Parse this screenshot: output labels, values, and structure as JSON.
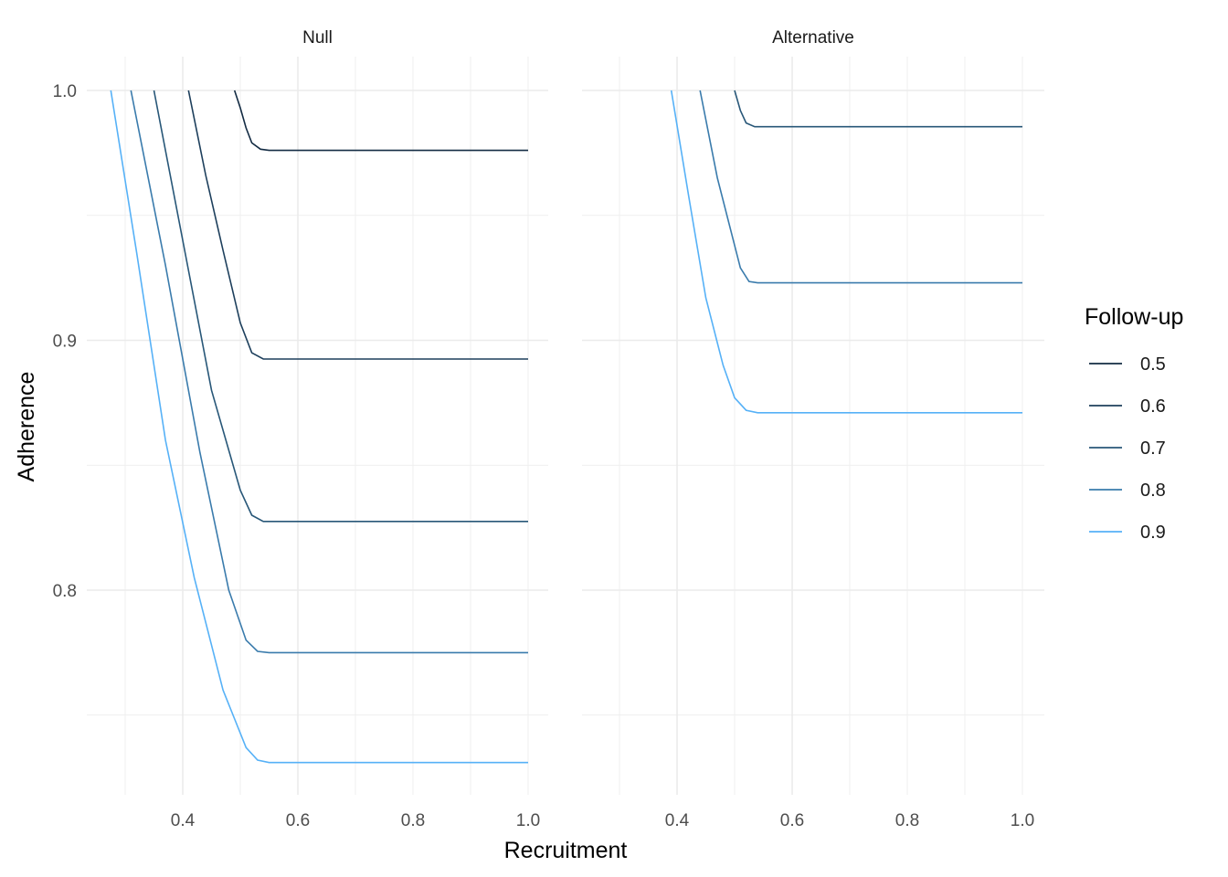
{
  "chart_data": [
    {
      "type": "line",
      "title": "Null",
      "xlabel": "Recruitment",
      "ylabel": "Adherence",
      "xlim": [
        0.25,
        1.03
      ],
      "ylim": [
        0.72,
        1.01
      ],
      "x_ticks": [
        "0.4",
        "0.6",
        "0.8",
        "1.0"
      ],
      "y_ticks": [
        "0.8",
        "0.9",
        "1.0"
      ],
      "grid": true,
      "series": [
        {
          "name": "0.5",
          "color": "#132b43",
          "points": [
            [
              0.49,
              1.0
            ],
            [
              0.5,
              0.993
            ],
            [
              0.51,
              0.985
            ],
            [
              0.52,
              0.979
            ],
            [
              0.535,
              0.9765
            ],
            [
              0.55,
              0.976
            ],
            [
              1.0,
              0.976
            ]
          ]
        },
        {
          "name": "0.6",
          "color": "#1d3f5c",
          "points": [
            [
              0.41,
              1.0
            ],
            [
              0.44,
              0.966
            ],
            [
              0.47,
              0.936
            ],
            [
              0.5,
              0.907
            ],
            [
              0.52,
              0.895
            ],
            [
              0.54,
              0.8925
            ],
            [
              0.56,
              0.8925
            ],
            [
              1.0,
              0.8925
            ]
          ]
        },
        {
          "name": "0.7",
          "color": "#285778",
          "points": [
            [
              0.35,
              1.0
            ],
            [
              0.4,
              0.94
            ],
            [
              0.45,
              0.88
            ],
            [
              0.5,
              0.84
            ],
            [
              0.52,
              0.83
            ],
            [
              0.54,
              0.8275
            ],
            [
              0.56,
              0.8275
            ],
            [
              1.0,
              0.8275
            ]
          ]
        },
        {
          "name": "0.8",
          "color": "#3a7bac",
          "points": [
            [
              0.31,
              1.0
            ],
            [
              0.37,
              0.93
            ],
            [
              0.43,
              0.855
            ],
            [
              0.48,
              0.8
            ],
            [
              0.51,
              0.78
            ],
            [
              0.53,
              0.7755
            ],
            [
              0.55,
              0.775
            ],
            [
              1.0,
              0.775
            ]
          ]
        },
        {
          "name": "0.9",
          "color": "#56b1f7",
          "points": [
            [
              0.275,
              1.0
            ],
            [
              0.32,
              0.935
            ],
            [
              0.37,
              0.86
            ],
            [
              0.42,
              0.805
            ],
            [
              0.47,
              0.76
            ],
            [
              0.51,
              0.737
            ],
            [
              0.53,
              0.732
            ],
            [
              0.55,
              0.731
            ],
            [
              1.0,
              0.731
            ]
          ]
        }
      ]
    },
    {
      "type": "line",
      "title": "Alternative",
      "xlabel": "Recruitment",
      "ylabel": "Adherence",
      "xlim": [
        0.25,
        1.03
      ],
      "ylim": [
        0.72,
        1.01
      ],
      "x_ticks": [
        "0.4",
        "0.6",
        "0.8",
        "1.0"
      ],
      "y_ticks": [
        "0.8",
        "0.9",
        "1.0"
      ],
      "grid": true,
      "series": [
        {
          "name": "0.7",
          "color": "#285778",
          "points": [
            [
              0.5,
              1.0
            ],
            [
              0.51,
              0.992
            ],
            [
              0.52,
              0.987
            ],
            [
              0.535,
              0.9855
            ],
            [
              0.55,
              0.9855
            ],
            [
              1.0,
              0.9855
            ]
          ]
        },
        {
          "name": "0.8",
          "color": "#3a7bac",
          "points": [
            [
              0.44,
              1.0
            ],
            [
              0.47,
              0.965
            ],
            [
              0.5,
              0.938
            ],
            [
              0.51,
              0.929
            ],
            [
              0.525,
              0.9235
            ],
            [
              0.54,
              0.923
            ],
            [
              1.0,
              0.923
            ]
          ]
        },
        {
          "name": "0.9",
          "color": "#56b1f7",
          "points": [
            [
              0.39,
              1.0
            ],
            [
              0.42,
              0.958
            ],
            [
              0.45,
              0.917
            ],
            [
              0.48,
              0.89
            ],
            [
              0.5,
              0.877
            ],
            [
              0.52,
              0.872
            ],
            [
              0.54,
              0.871
            ],
            [
              1.0,
              0.871
            ]
          ]
        }
      ]
    }
  ],
  "legend": {
    "title": "Follow-up",
    "position": "right",
    "items": [
      {
        "label": "0.5",
        "color": "#132b43"
      },
      {
        "label": "0.6",
        "color": "#1d3f5c"
      },
      {
        "label": "0.7",
        "color": "#285778"
      },
      {
        "label": "0.8",
        "color": "#3a7bac"
      },
      {
        "label": "0.9",
        "color": "#56b1f7"
      }
    ]
  }
}
